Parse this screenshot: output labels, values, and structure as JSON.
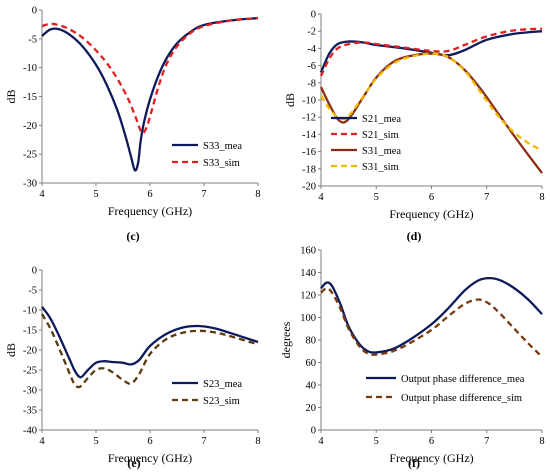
{
  "chart_data": [
    {
      "id": "c",
      "type": "line",
      "caption": "(c)",
      "xlabel": "Frequency (GHz)",
      "ylabel": "dB",
      "xlim": [
        4,
        8
      ],
      "ylim": [
        -30,
        0
      ],
      "xticks": [
        4,
        5,
        6,
        7,
        8
      ],
      "yticks": [
        0,
        -5,
        -10,
        -15,
        -20,
        -25,
        -30
      ],
      "grid": false,
      "legend_position": "bottom-right",
      "series": [
        {
          "name": "S33_mea",
          "color": "#0d1a5c",
          "dash": "solid",
          "x": [
            4,
            4.15,
            4.3,
            4.5,
            4.75,
            5.0,
            5.2,
            5.4,
            5.55,
            5.65,
            5.72,
            5.78,
            5.83,
            5.9,
            6.0,
            6.15,
            6.3,
            6.5,
            6.75,
            7.0,
            7.5,
            8
          ],
          "y": [
            -4.5,
            -3.4,
            -3.3,
            -4.2,
            -6.3,
            -9.5,
            -13,
            -17.5,
            -22,
            -25.5,
            -27.8,
            -26.5,
            -22.5,
            -19,
            -15.5,
            -11.5,
            -8.5,
            -5.8,
            -3.8,
            -2.6,
            -1.8,
            -1.4
          ]
        },
        {
          "name": "S33_sim",
          "color": "#e02020",
          "dash": "dashed",
          "x": [
            4,
            4.15,
            4.3,
            4.5,
            4.75,
            5.0,
            5.2,
            5.4,
            5.6,
            5.75,
            5.85,
            5.93,
            6.0,
            6.15,
            6.3,
            6.5,
            6.75,
            7.0,
            7.5,
            8
          ],
          "y": [
            -2.8,
            -2.4,
            -2.6,
            -3.3,
            -4.8,
            -7,
            -9.2,
            -12,
            -15.5,
            -19,
            -21.3,
            -20.5,
            -18.5,
            -13.5,
            -9.5,
            -6.3,
            -4,
            -2.8,
            -1.8,
            -1.4
          ]
        }
      ]
    },
    {
      "id": "d",
      "type": "line",
      "caption": "(d)",
      "xlabel": "Frequency (GHz)",
      "ylabel": "dB",
      "xlim": [
        4,
        8
      ],
      "ylim": [
        -20,
        0
      ],
      "xticks": [
        4,
        5,
        6,
        7,
        8
      ],
      "yticks": [
        0,
        -2,
        -4,
        -6,
        -8,
        -10,
        -12,
        -14,
        -16,
        -18,
        -20
      ],
      "grid": false,
      "legend_position": "bottom-left",
      "series": [
        {
          "name": "S21_mea",
          "color": "#0d1a5c",
          "dash": "solid",
          "x": [
            4,
            4.15,
            4.3,
            4.5,
            4.75,
            5,
            5.5,
            6,
            6.3,
            6.6,
            7,
            7.5,
            8
          ],
          "y": [
            -6.8,
            -4.6,
            -3.5,
            -3.2,
            -3.3,
            -3.6,
            -4,
            -4.5,
            -4.8,
            -4.2,
            -3,
            -2.3,
            -2
          ]
        },
        {
          "name": "S21_sim",
          "color": "#e02020",
          "dash": "dashed",
          "x": [
            4,
            4.15,
            4.3,
            4.5,
            4.75,
            5,
            5.5,
            6,
            6.3,
            6.6,
            7,
            7.5,
            8
          ],
          "y": [
            -7.2,
            -5.2,
            -4,
            -3.5,
            -3.3,
            -3.5,
            -3.9,
            -4.3,
            -4.3,
            -3.6,
            -2.6,
            -1.9,
            -1.7
          ]
        },
        {
          "name": "S31_mea",
          "color": "#8b2e12",
          "dash": "solid",
          "x": [
            4,
            4.15,
            4.3,
            4.42,
            4.55,
            4.75,
            5,
            5.3,
            5.6,
            6,
            6.3,
            6.6,
            6.9,
            7.2,
            7.5,
            7.8,
            8
          ],
          "y": [
            -8.5,
            -10.5,
            -12.2,
            -12.6,
            -11.8,
            -9.8,
            -7.4,
            -5.6,
            -4.9,
            -4.6,
            -5,
            -6.5,
            -8.8,
            -11.5,
            -14.2,
            -16.8,
            -18.5
          ]
        },
        {
          "name": "S31_sim",
          "color": "#f2b800",
          "dash": "dashed",
          "x": [
            4,
            4.15,
            4.3,
            4.42,
            4.55,
            4.75,
            5,
            5.3,
            5.6,
            6,
            6.3,
            6.6,
            6.9,
            7.2,
            7.5,
            7.8,
            8
          ],
          "y": [
            -9.5,
            -11,
            -12,
            -12.2,
            -11.5,
            -9.7,
            -7.5,
            -5.8,
            -5,
            -4.6,
            -5,
            -6.6,
            -9.2,
            -11.8,
            -13.8,
            -15.2,
            -15.8
          ]
        }
      ]
    },
    {
      "id": "e",
      "type": "line",
      "caption": "(e)",
      "xlabel": "Frequency (GHz)",
      "ylabel": "dB",
      "xlim": [
        4,
        8
      ],
      "ylim": [
        -40,
        0
      ],
      "xticks": [
        4,
        5,
        6,
        7,
        8
      ],
      "yticks": [
        0,
        -5,
        -10,
        -15,
        -20,
        -25,
        -30,
        -35,
        -40
      ],
      "grid": false,
      "legend_position": "bottom-right",
      "series": [
        {
          "name": "S23_mea",
          "color": "#0d1a5c",
          "dash": "solid",
          "x": [
            4,
            4.15,
            4.3,
            4.5,
            4.62,
            4.72,
            4.85,
            5,
            5.15,
            5.3,
            5.5,
            5.65,
            5.8,
            6,
            6.3,
            6.6,
            6.9,
            7.2,
            7.5,
            8
          ],
          "y": [
            -9.2,
            -12,
            -16,
            -22,
            -25.5,
            -26.8,
            -25,
            -23.2,
            -22.8,
            -23,
            -23.2,
            -23.6,
            -22.5,
            -19,
            -16,
            -14.4,
            -14,
            -14.6,
            -15.8,
            -18
          ]
        },
        {
          "name": "S23_sim",
          "color": "#5a3a0e",
          "dash": "dashed",
          "x": [
            4,
            4.15,
            4.3,
            4.5,
            4.6,
            4.7,
            4.85,
            5,
            5.15,
            5.3,
            5.5,
            5.65,
            5.8,
            6,
            6.3,
            6.6,
            6.9,
            7.2,
            7.5,
            8
          ],
          "y": [
            -11,
            -14.5,
            -19,
            -25.5,
            -28.5,
            -29.2,
            -27,
            -25,
            -24.6,
            -25.5,
            -27.5,
            -28.4,
            -26,
            -21,
            -17.3,
            -15.7,
            -15.2,
            -15.6,
            -16.6,
            -18.6
          ]
        }
      ]
    },
    {
      "id": "f",
      "type": "line",
      "caption": "(f)",
      "xlabel": "Frequency (GHz)",
      "ylabel": "degrees",
      "xlim": [
        4,
        8
      ],
      "ylim": [
        0,
        160
      ],
      "xticks": [
        4,
        5,
        6,
        7,
        8
      ],
      "yticks": [
        160,
        140,
        120,
        100,
        80,
        60,
        40,
        20,
        0
      ],
      "grid": false,
      "legend_position": "bottom-right",
      "series": [
        {
          "name": "Output phase difference_mea",
          "color": "#0d1a5c",
          "dash": "solid",
          "x": [
            4,
            4.1,
            4.2,
            4.35,
            4.5,
            4.7,
            4.85,
            5,
            5.3,
            5.6,
            6,
            6.3,
            6.6,
            6.85,
            7.05,
            7.25,
            7.5,
            7.75,
            8
          ],
          "y": [
            126,
            131,
            128,
            112,
            92,
            76,
            70,
            69,
            72,
            80,
            94,
            108,
            124,
            133,
            135,
            133,
            126,
            116,
            103
          ]
        },
        {
          "name": "Output phase difference_sim",
          "color": "#7a3a10",
          "dash": "dashed",
          "x": [
            4,
            4.1,
            4.2,
            4.35,
            4.5,
            4.7,
            4.85,
            5,
            5.3,
            5.6,
            6,
            6.3,
            6.6,
            6.85,
            7.05,
            7.25,
            7.5,
            7.75,
            8
          ],
          "y": [
            122,
            126,
            122,
            108,
            90,
            74,
            68,
            67,
            70,
            77,
            89,
            101,
            112,
            116,
            112,
            103,
            90,
            77,
            65
          ]
        }
      ]
    }
  ]
}
